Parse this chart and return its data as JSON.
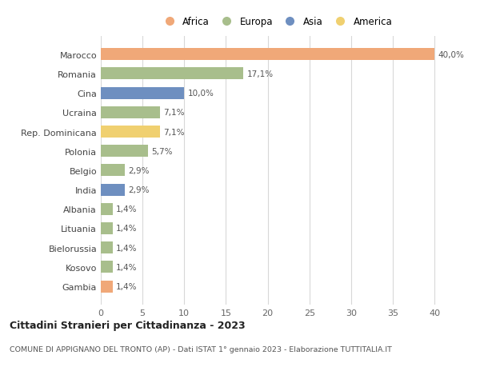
{
  "categories": [
    "Marocco",
    "Romania",
    "Cina",
    "Ucraina",
    "Rep. Dominicana",
    "Polonia",
    "Belgio",
    "India",
    "Albania",
    "Lituania",
    "Bielorussia",
    "Kosovo",
    "Gambia"
  ],
  "values": [
    40.0,
    17.1,
    10.0,
    7.1,
    7.1,
    5.7,
    2.9,
    2.9,
    1.4,
    1.4,
    1.4,
    1.4,
    1.4
  ],
  "labels": [
    "40,0%",
    "17,1%",
    "10,0%",
    "7,1%",
    "7,1%",
    "5,7%",
    "2,9%",
    "2,9%",
    "1,4%",
    "1,4%",
    "1,4%",
    "1,4%",
    "1,4%"
  ],
  "continents": [
    "Africa",
    "Europa",
    "Asia",
    "Europa",
    "America",
    "Europa",
    "Europa",
    "Asia",
    "Europa",
    "Europa",
    "Europa",
    "Europa",
    "Africa"
  ],
  "continent_colors": {
    "Africa": "#F0A878",
    "Europa": "#A8BE8C",
    "Asia": "#6E8FC0",
    "America": "#F0D070"
  },
  "legend_order": [
    "Africa",
    "Europa",
    "Asia",
    "America"
  ],
  "title": "Cittadini Stranieri per Cittadinanza - 2023",
  "subtitle": "COMUNE DI APPIGNANO DEL TRONTO (AP) - Dati ISTAT 1° gennaio 2023 - Elaborazione TUTTITALIA.IT",
  "xlim": [
    0,
    42
  ],
  "xticks": [
    0,
    5,
    10,
    15,
    20,
    25,
    30,
    35,
    40
  ],
  "background_color": "#ffffff",
  "grid_color": "#d8d8d8"
}
